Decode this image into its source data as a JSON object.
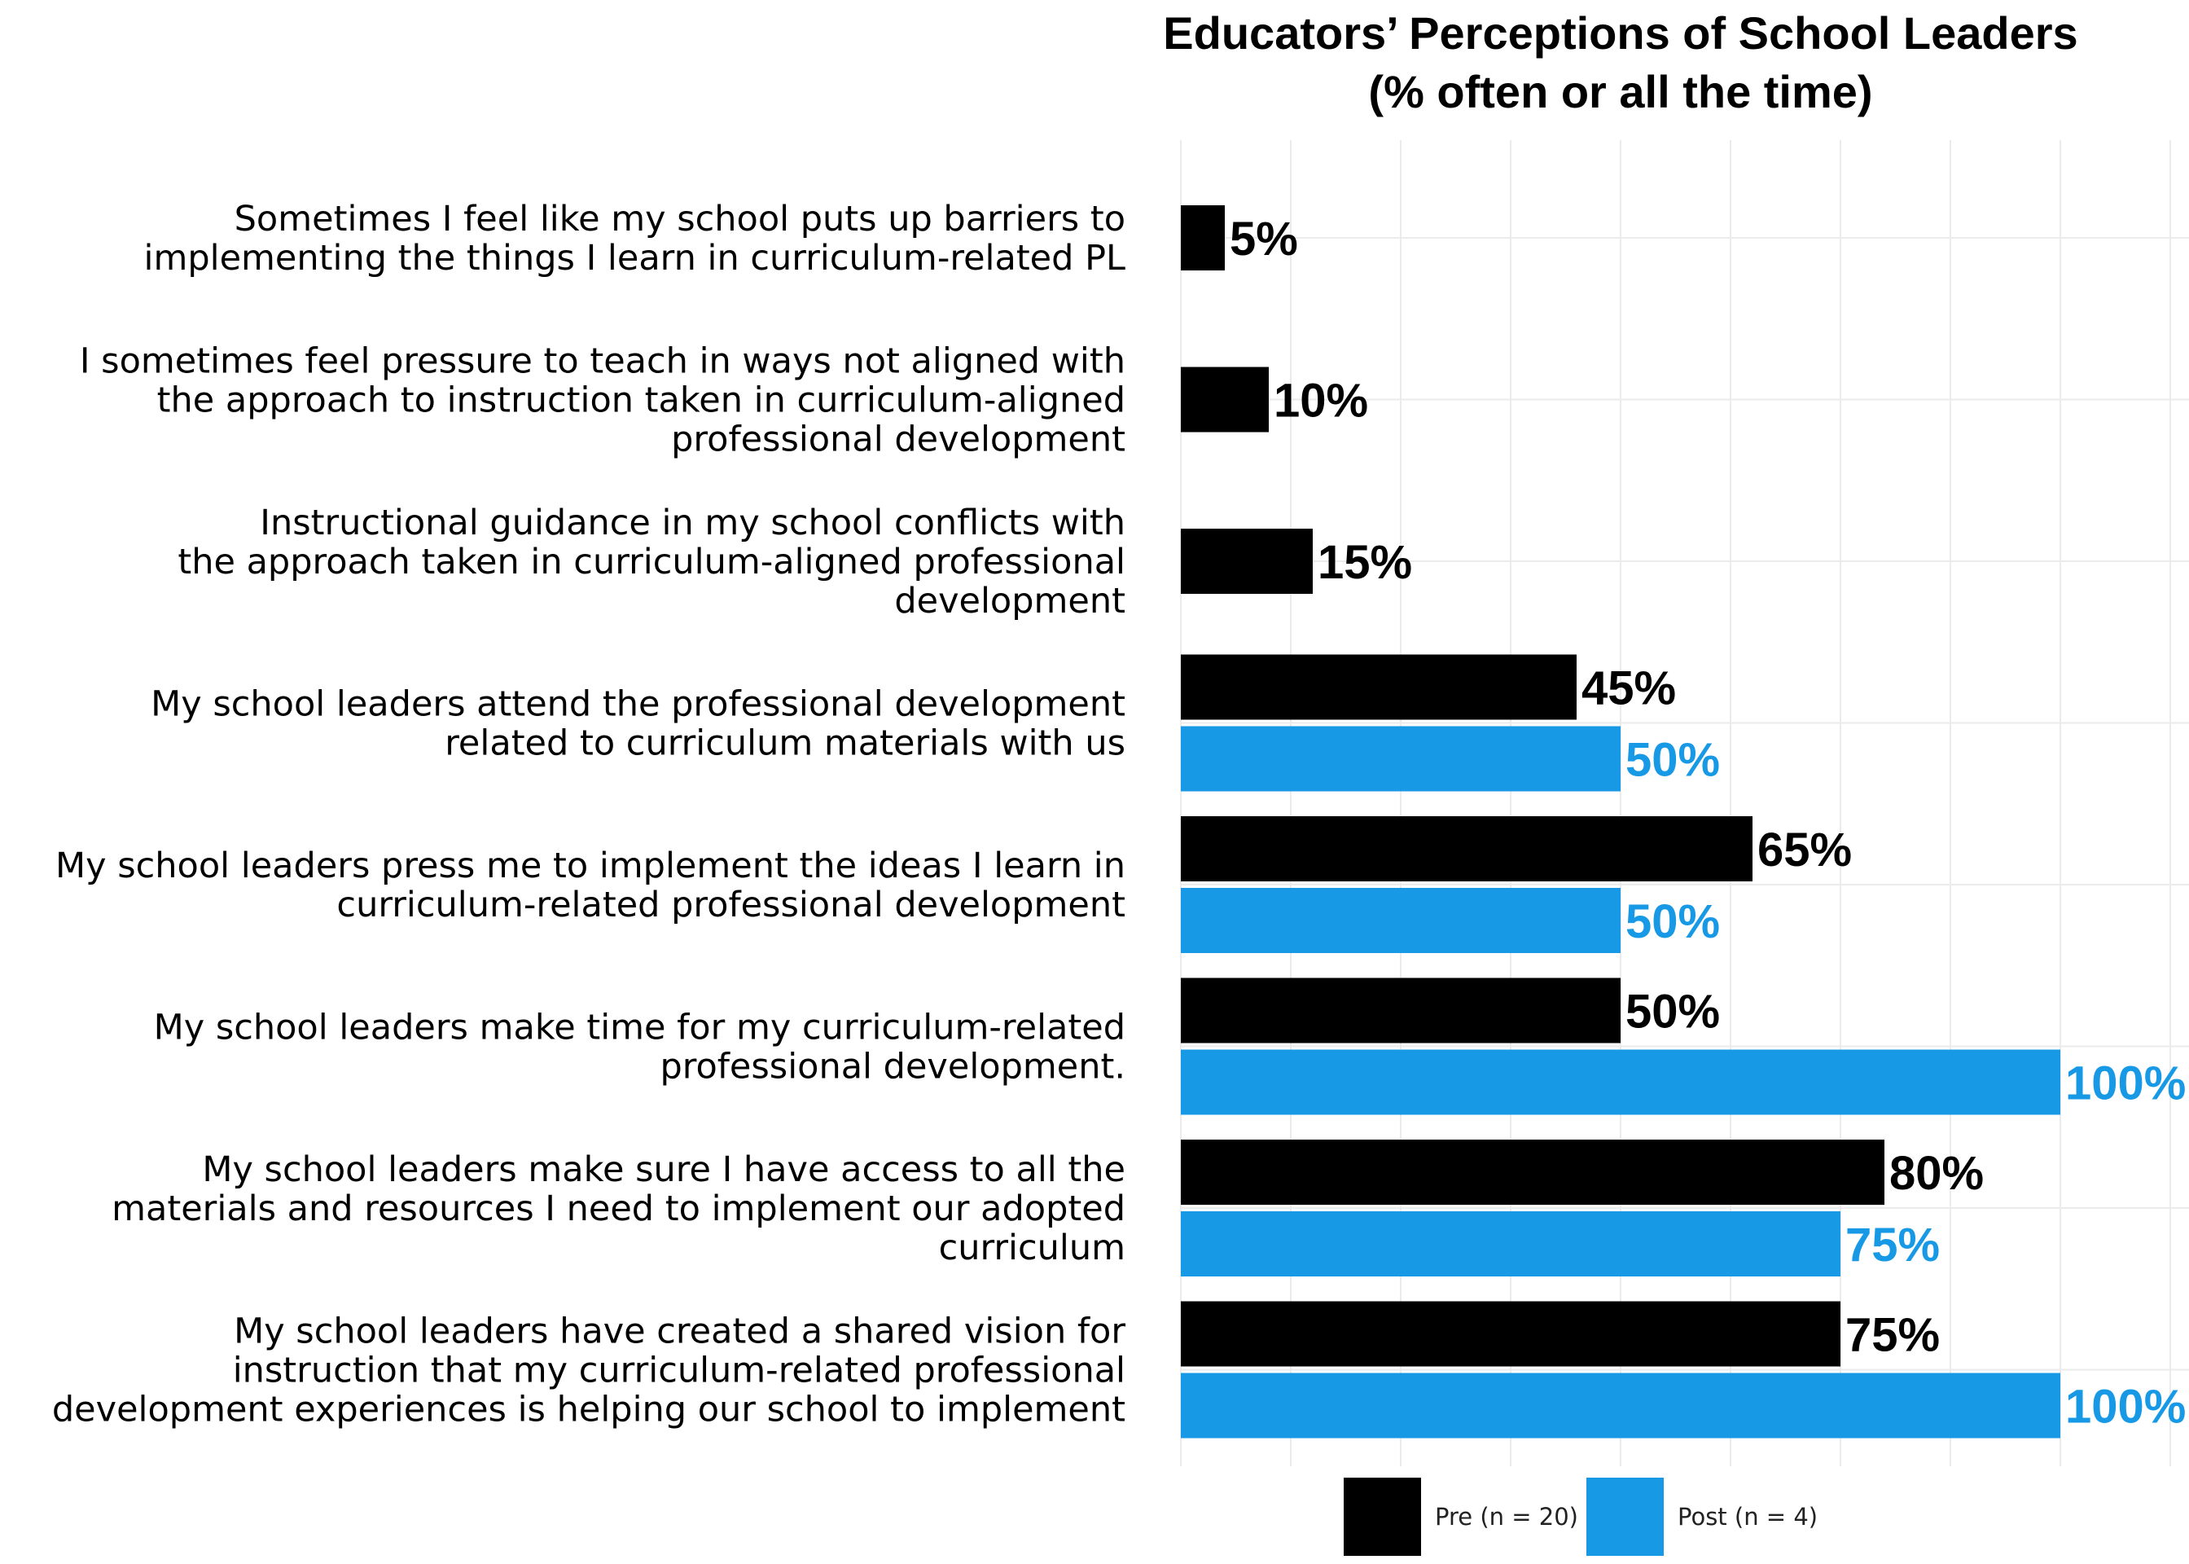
{
  "chart_data": {
    "type": "bar",
    "orientation": "horizontal",
    "title": [
      "Educators’ Perceptions of School Leaders",
      "(% often or all the time)"
    ],
    "xlabel": "",
    "ylabel": "",
    "xlim": [
      0,
      100
    ],
    "grid": true,
    "legend_position": "bottom",
    "categories": [
      {
        "lines": [
          "Sometimes I feel like my school puts up barriers to",
          "implementing the things I learn in curriculum-related PL"
        ]
      },
      {
        "lines": [
          "I sometimes feel pressure to teach in ways not aligned with",
          "the approach to instruction taken in curriculum-aligned",
          "professional development"
        ]
      },
      {
        "lines": [
          "Instructional guidance in my school conflicts with",
          "the approach taken in curriculum-aligned professional",
          "development"
        ]
      },
      {
        "lines": [
          "My school leaders attend the professional development",
          "related to curriculum materials with us"
        ]
      },
      {
        "lines": [
          "My school leaders press me to implement the ideas I learn in",
          "curriculum-related professional development"
        ]
      },
      {
        "lines": [
          "My school leaders make time for my curriculum-related",
          "professional development."
        ]
      },
      {
        "lines": [
          "My school leaders make sure I have access to all the",
          "materials and resources I need to implement our adopted",
          "curriculum"
        ]
      },
      {
        "lines": [
          "My school leaders have created a shared vision for",
          "instruction that my curriculum-related professional",
          "development experiences is helping our school to implement"
        ]
      }
    ],
    "series": [
      {
        "name": "Pre (n = 20)",
        "color": "#000000",
        "values": [
          5,
          10,
          15,
          45,
          65,
          50,
          80,
          75
        ],
        "labels": [
          "5%",
          "10%",
          "15%",
          "45%",
          "65%",
          "50%",
          "80%",
          "75%"
        ]
      },
      {
        "name": "Post (n = 4)",
        "color": "#1899e6",
        "values": [
          null,
          null,
          null,
          50,
          50,
          100,
          75,
          100
        ],
        "labels": [
          "",
          "",
          "",
          "50%",
          "50%",
          "100%",
          "75%",
          "100%"
        ]
      }
    ]
  }
}
